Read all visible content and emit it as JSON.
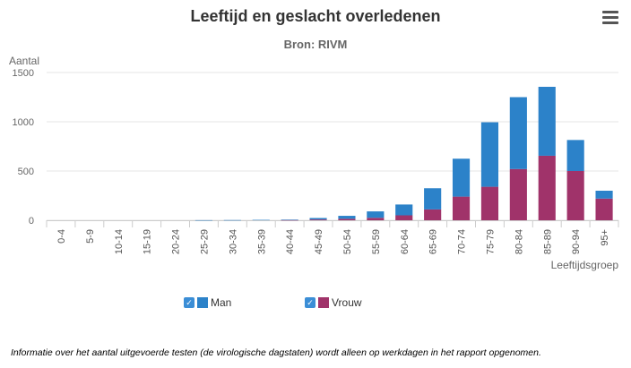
{
  "chart_data": {
    "type": "bar",
    "stacked": true,
    "title": "Leeftijd en geslacht overledenen",
    "subtitle": "Bron: RIVM",
    "xlabel": "Leeftijdsgroep",
    "ylabel": "Aantal",
    "ylim": [
      0,
      1500
    ],
    "yticks": [
      0,
      500,
      1000,
      1500
    ],
    "categories": [
      "0-4",
      "5-9",
      "10-14",
      "15-19",
      "20-24",
      "25-29",
      "30-34",
      "35-39",
      "40-44",
      "45-49",
      "50-54",
      "55-59",
      "60-64",
      "65-69",
      "70-74",
      "75-79",
      "80-84",
      "85-89",
      "90-94",
      "95+"
    ],
    "series": [
      {
        "name": "Vrouw",
        "color": "#a0336a",
        "values": [
          0,
          0,
          0,
          0,
          0,
          0,
          0,
          0,
          2,
          8,
          15,
          25,
          50,
          110,
          240,
          340,
          520,
          655,
          500,
          220
        ]
      },
      {
        "name": "Man",
        "color": "#2c82c9",
        "values": [
          0,
          0,
          0,
          0,
          0,
          1,
          2,
          4,
          5,
          15,
          30,
          65,
          110,
          215,
          385,
          655,
          730,
          700,
          315,
          80
        ]
      }
    ],
    "grid": true,
    "legend_position": "bottom"
  },
  "header": {
    "menu_icon": "hamburger-menu-icon"
  },
  "legend": [
    {
      "label": "Man",
      "color": "#2c82c9",
      "checked": true
    },
    {
      "label": "Vrouw",
      "color": "#a0336a",
      "checked": true
    }
  ],
  "footnote": "Informatie over het aantal uitgevoerde testen (de virologische dagstaten) wordt alleen op werkdagen in het rapport opgenomen."
}
